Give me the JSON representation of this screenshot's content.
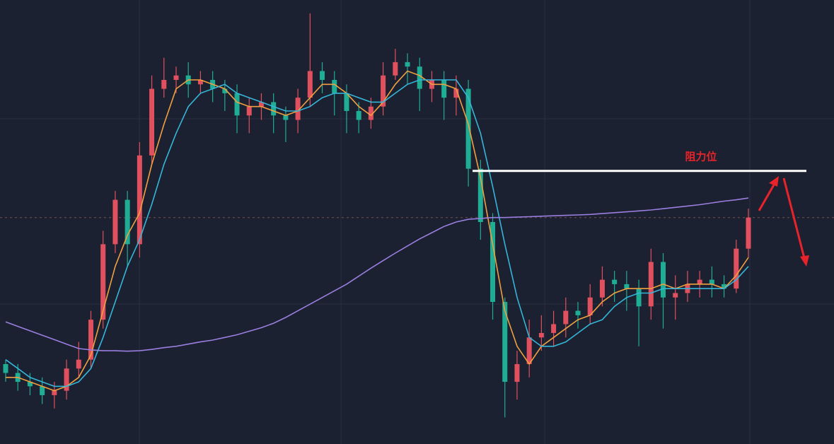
{
  "chart_data": {
    "type": "candlestick",
    "annotation": "阻力位",
    "annotation_color": "#e8232a",
    "resistance": 61.5,
    "ylim": [
      0,
      100
    ],
    "up_color": "#e0505e",
    "down_color": "#1fae95",
    "candles": {
      "open": [
        18,
        16,
        14,
        13,
        11,
        12,
        17,
        19,
        28,
        45,
        55,
        45,
        65,
        80,
        82,
        83,
        81,
        82,
        80,
        79,
        74,
        76,
        77,
        74,
        73,
        78,
        84,
        82,
        79,
        75,
        73,
        76,
        83,
        86,
        85,
        80,
        82,
        78,
        80,
        62,
        50,
        32,
        14,
        18,
        24,
        25,
        27,
        30,
        29,
        33,
        37,
        36,
        35,
        31,
        41,
        33,
        34,
        36,
        37,
        36,
        35,
        44
      ],
      "high": [
        19,
        18,
        16,
        15,
        14,
        19,
        23,
        30,
        48,
        57,
        57,
        68,
        83,
        87,
        85,
        86,
        84,
        84,
        82,
        81,
        78,
        79,
        79,
        76,
        80,
        97,
        86,
        84,
        81,
        77,
        78,
        86,
        89,
        88,
        87,
        84,
        84,
        83,
        82,
        64,
        52,
        33,
        21,
        28,
        29,
        30,
        33,
        32,
        36,
        40,
        39,
        39,
        37,
        44,
        43,
        38,
        39,
        39,
        40,
        38,
        46,
        53
      ],
      "low": [
        14,
        12,
        11,
        9,
        8,
        10,
        15,
        17,
        26,
        43,
        40,
        42,
        63,
        78,
        79,
        78,
        79,
        77,
        75,
        70,
        70,
        73,
        70,
        68,
        70,
        76,
        79,
        74,
        70,
        70,
        71,
        74,
        82,
        81,
        75,
        77,
        73,
        74,
        58,
        46,
        28,
        6,
        10,
        15,
        21,
        22,
        24,
        26,
        27,
        31,
        32,
        30,
        22,
        28,
        26,
        28,
        32,
        33,
        33,
        33,
        34,
        42
      ],
      "close": [
        16,
        14,
        13,
        11,
        12,
        17,
        19,
        28,
        45,
        55,
        45,
        65,
        80,
        82,
        83,
        81,
        82,
        80,
        79,
        74,
        76,
        77,
        74,
        73,
        78,
        84,
        82,
        79,
        75,
        73,
        76,
        83,
        86,
        85,
        80,
        82,
        78,
        80,
        62,
        50,
        32,
        14,
        18,
        24,
        25,
        27,
        30,
        29,
        33,
        37,
        36,
        35,
        31,
        41,
        33,
        34,
        36,
        37,
        36,
        35,
        44,
        51
      ]
    },
    "series": [
      {
        "color": "#f0a040",
        "values": [
          15,
          15,
          14,
          13,
          12,
          13,
          15,
          20,
          30,
          40,
          47,
          52,
          63,
          72,
          80,
          82,
          82,
          81,
          80,
          77,
          76,
          76,
          75,
          74,
          75,
          78,
          81,
          81,
          79,
          76,
          74,
          77,
          81,
          84,
          83,
          81,
          81,
          80,
          72,
          60,
          45,
          30,
          22,
          18,
          22,
          24,
          26,
          28,
          29,
          32,
          34,
          35,
          35,
          35,
          36,
          35,
          36,
          36,
          36,
          35,
          38,
          42
        ]
      },
      {
        "color": "#35b5d8",
        "values": [
          19,
          17,
          15,
          14,
          13,
          13,
          14,
          17,
          24,
          32,
          40,
          46,
          54,
          63,
          70,
          76,
          79,
          80,
          81,
          79,
          78,
          77,
          76,
          75,
          75,
          76,
          78,
          79,
          79,
          78,
          77,
          77,
          79,
          81,
          82,
          82,
          82,
          82,
          78,
          70,
          58,
          45,
          33,
          24,
          22,
          22,
          23,
          25,
          27,
          28,
          31,
          33,
          34,
          34,
          35,
          35,
          35,
          35,
          35,
          35,
          37,
          40
        ]
      },
      {
        "color": "#9a7ee0",
        "values": [
          27.5,
          26.5,
          25.5,
          24.5,
          23.5,
          22.5,
          21.5,
          21.2,
          21,
          21,
          20.9,
          21,
          21.3,
          21.7,
          22,
          22.5,
          23,
          23.4,
          24,
          24.6,
          25.4,
          26.2,
          27.2,
          28.5,
          30,
          31.5,
          33,
          34.5,
          36,
          37.8,
          39.6,
          41.3,
          43,
          44.6,
          46.2,
          47.6,
          49,
          50,
          50.6,
          50.8,
          51,
          51,
          51.1,
          51.2,
          51.3,
          51.4,
          51.5,
          51.6,
          51.7,
          51.9,
          52.1,
          52.3,
          52.5,
          52.7,
          53,
          53.3,
          53.6,
          53.9,
          54.3,
          54.7,
          55,
          55.4
        ]
      }
    ]
  }
}
